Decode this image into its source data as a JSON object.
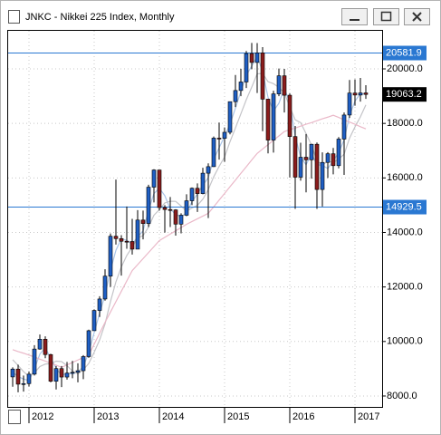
{
  "chart_data": {
    "type": "candlestick",
    "title": "JNKC - Nikkei 225 Index, Monthly",
    "categories": [
      null,
      null,
      null,
      "2012",
      null,
      null,
      null,
      null,
      null,
      null,
      null,
      null,
      null,
      null,
      null,
      "2013",
      null,
      null,
      null,
      null,
      null,
      null,
      null,
      null,
      null,
      null,
      null,
      "2014",
      null,
      null,
      null,
      null,
      null,
      null,
      null,
      null,
      null,
      null,
      null,
      "2015",
      null,
      null,
      null,
      null,
      null,
      null,
      null,
      null,
      null,
      null,
      null,
      "2016",
      null,
      null,
      null,
      null,
      null,
      null,
      null,
      null,
      null,
      null,
      null,
      "2017",
      null,
      null
    ],
    "open": [
      8700,
      8988,
      8434,
      8455,
      8802,
      9723,
      10083,
      9520,
      8542,
      9006,
      8695,
      8839,
      8870,
      8928,
      9446,
      10395,
      11138,
      11559,
      12397,
      13860,
      13774,
      13677,
      13668,
      13388,
      14455,
      14327,
      15661,
      16291,
      14914,
      14841,
      14827,
      14304,
      14632,
      15162,
      15621,
      15425,
      16174,
      16414,
      17460,
      17451,
      17674,
      18798,
      19207,
      19520,
      20563,
      20236,
      20585,
      18890,
      17388,
      19083,
      19747,
      19034,
      17518,
      16027,
      16759,
      16666,
      17235,
      15576,
      16569,
      16887,
      16450,
      17425,
      18308,
      19114,
      19041,
      19119
    ],
    "high": [
      9050,
      9150,
      8750,
      8900,
      9866,
      10255,
      10190,
      9550,
      9100,
      9100,
      9250,
      9288,
      9200,
      9500,
      10434,
      11180,
      11662,
      12650,
      13964,
      15942,
      13900,
      14953,
      14500,
      14817,
      14800,
      15750,
      16320,
      16164,
      15000,
      15300,
      14850,
      14700,
      15400,
      15650,
      15800,
      16374,
      16533,
      17520,
      18030,
      17850,
      18800,
      19778,
      20006,
      20655,
      20953,
      20946,
      20800,
      18900,
      19200,
      20012,
      20000,
      19100,
      17905,
      17291,
      17613,
      17251,
      17300,
      16938,
      16944,
      17100,
      17500,
      18400,
      19592,
      19615,
      19668,
      19400
    ],
    "low": [
      8340,
      8135,
      8160,
      8350,
      8750,
      9700,
      9388,
      8500,
      8238,
      8328,
      8600,
      8650,
      8500,
      8620,
      9400,
      10400,
      10900,
      11500,
      12000,
      13555,
      12415,
      13400,
      13188,
      13400,
      13748,
      14200,
      15100,
      14800,
      13995,
      14200,
      13885,
      13965,
      14600,
      15000,
      14753,
      15400,
      14529,
      16400,
      16672,
      16592,
      17600,
      18600,
      19000,
      19300,
      19990,
      19115,
      17714,
      16901,
      16930,
      19000,
      18400,
      16017,
      14865,
      15900,
      15471,
      15975,
      14864,
      14950,
      16000,
      16130,
      16350,
      16111,
      18200,
      18650,
      18800,
      18900
    ],
    "close": [
      8988,
      8434,
      8455,
      8802,
      9723,
      10083,
      9520,
      8542,
      9006,
      8695,
      8839,
      8870,
      8928,
      9446,
      10395,
      11138,
      11559,
      12397,
      13860,
      13774,
      13677,
      13668,
      13388,
      14455,
      14327,
      15661,
      16291,
      14914,
      14841,
      14827,
      14304,
      14632,
      15162,
      15621,
      15425,
      16174,
      16414,
      17460,
      17451,
      17674,
      18798,
      19207,
      19520,
      20563,
      20236,
      20585,
      18890,
      17388,
      19083,
      19747,
      19034,
      17518,
      16027,
      16759,
      16666,
      17235,
      15576,
      16569,
      16887,
      16450,
      17425,
      18308,
      19114,
      19041,
      19119,
      19063
    ],
    "up_color": "#1f5fc4",
    "down_color": "#8a1c1c",
    "moving_averages": [
      {
        "color": "#a9c4e8",
        "values": [
          8881,
          8707,
          8626,
          8564,
          8993,
          9536,
          9775,
          9382,
          9023,
          8748,
          8847,
          8801,
          8879,
          9081,
          9590,
          10326,
          11031,
          11698,
          12605,
          13344,
          13770,
          13706,
          13578,
          13837,
          14057,
          14814,
          15426,
          15622,
          15349,
          14861,
          14657,
          14588,
          14699,
          15138,
          15403,
          15740,
          16004,
          16683,
          17108,
          17528,
          17974,
          18560,
          19175,
          19763,
          20106,
          20461,
          19904,
          18954,
          18454,
          18739,
          19288,
          18766,
          17526,
          16768,
          16484,
          16887,
          16492,
          16460,
          16344,
          16635,
          16921,
          17394,
          18282,
          18821,
          19091,
          19074
        ]
      },
      {
        "color": "#c4c4c8",
        "values": [
          9331,
          9121,
          8894,
          8722,
          8850,
          9081,
          9170,
          9188,
          9279,
          9262,
          9114,
          8912,
          8813,
          8964,
          9196,
          9603,
          10056,
          10644,
          11466,
          12187,
          12734,
          13156,
          13461,
          13804,
          13882,
          14196,
          14632,
          14839,
          15082,
          15144,
          15140,
          14968,
          14780,
          14898,
          14995,
          15220,
          15571,
          16043,
          16424,
          16766,
          17329,
          17834,
          18352,
          18869,
          19333,
          19818,
          19834,
          19530,
          19458,
          19322,
          19121,
          18610,
          18133,
          18028,
          17625,
          17207,
          16630,
          16472,
          16615,
          16564,
          16690,
          16869,
          17459,
          17871,
          18243,
          18678
        ]
      },
      {
        "color": "#eab8c8",
        "values": [
          9700,
          9630,
          9570,
          9500,
          9430,
          9350,
          9280,
          9200,
          9130,
          9050,
          9140,
          9230,
          9320,
          9410,
          9500,
          9900,
          10300,
          10700,
          11080,
          11460,
          11840,
          12220,
          12600,
          12820,
          13040,
          13260,
          13480,
          13700,
          13820,
          13940,
          14060,
          14180,
          14300,
          14400,
          14500,
          14600,
          14700,
          14940,
          15190,
          15430,
          15680,
          15920,
          16170,
          16410,
          16660,
          16900,
          17060,
          17220,
          17380,
          17540,
          17700,
          17770,
          17830,
          17900,
          17970,
          18030,
          18100,
          18170,
          18230,
          18300,
          18220,
          18130,
          18050,
          17970,
          17880,
          17800
        ]
      }
    ],
    "horizontal_lines": [
      20581.9,
      14929.5
    ],
    "line_color": "#2a78d2",
    "last_price": 19063.2,
    "ylim": [
      7600,
      21430
    ],
    "yticks": [
      {
        "value": 8000,
        "label": "8000.0"
      },
      {
        "value": 10000,
        "label": "10000.0"
      },
      {
        "value": 12000,
        "label": "12000.0"
      },
      {
        "value": 14000,
        "label": "14000.0"
      },
      {
        "value": 16000,
        "label": "16000.0"
      },
      {
        "value": 18000,
        "label": "18000.0"
      },
      {
        "value": 20000,
        "label": "20000.0"
      }
    ],
    "grid": true
  }
}
